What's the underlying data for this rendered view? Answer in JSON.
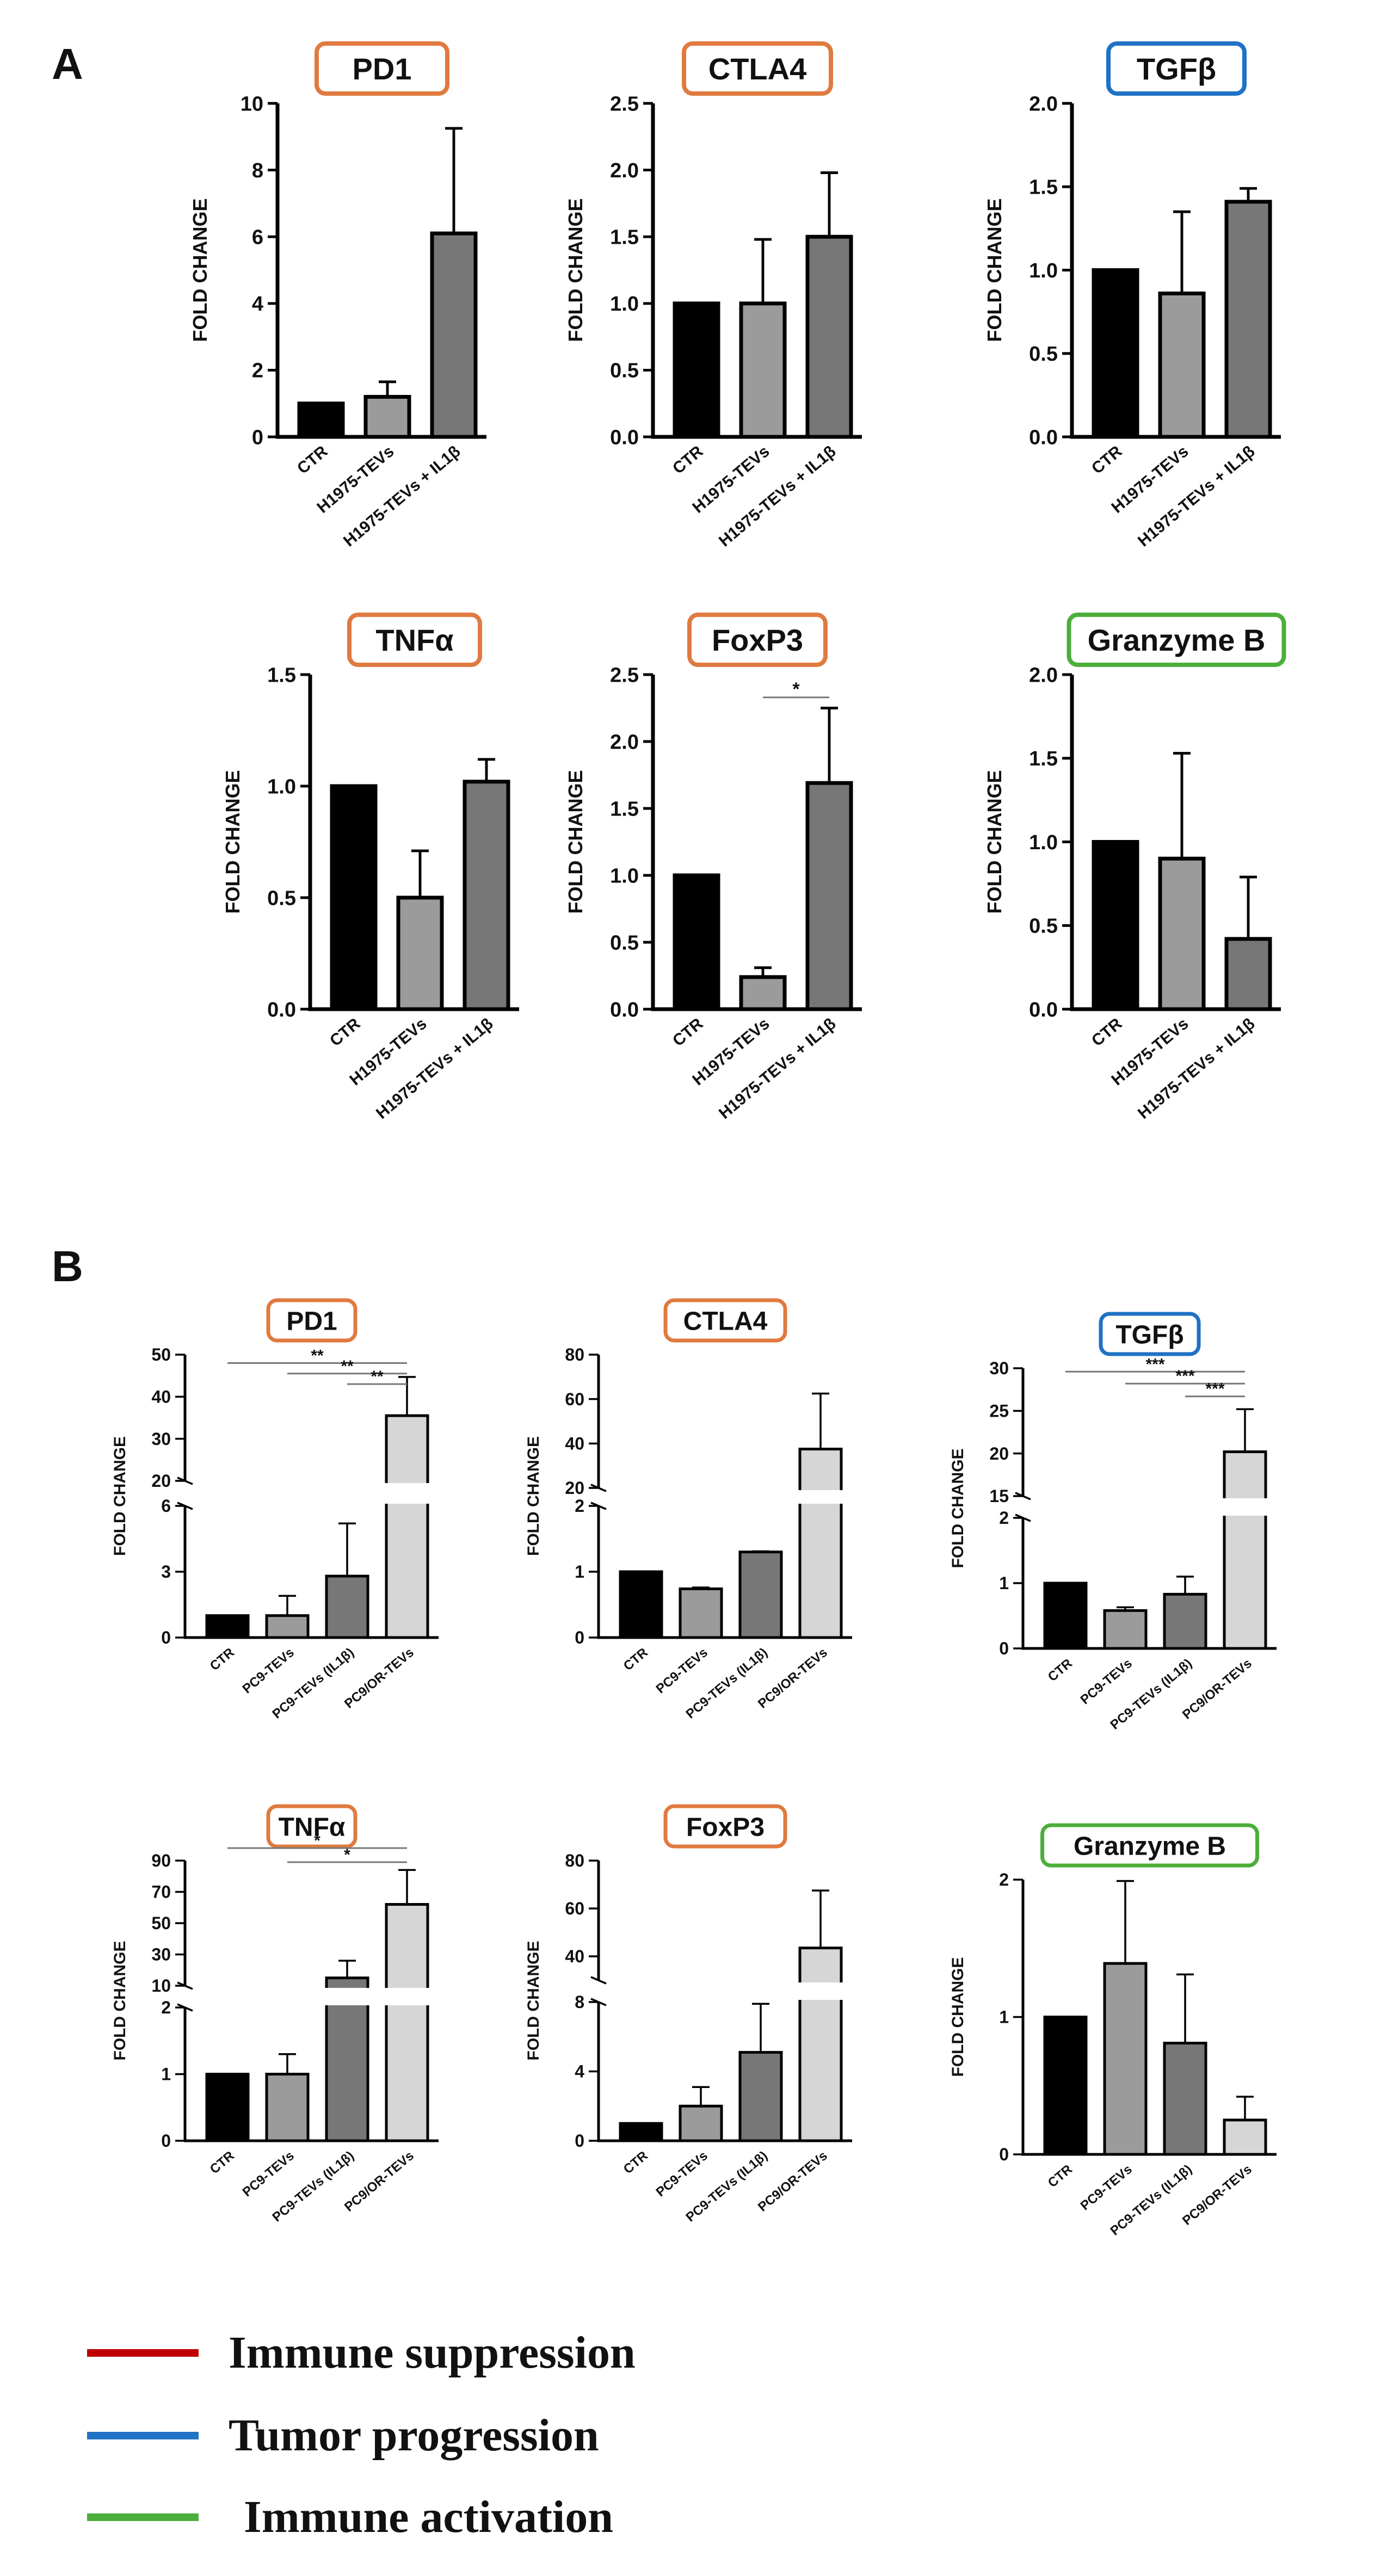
{
  "panel_labels": {
    "a": "A",
    "b": "B"
  },
  "colors": {
    "immune_suppression": "#e07a3f",
    "tumor_progression": "#1f72c4",
    "immune_activation": "#4cae3a",
    "legend_suppression_line": "#c00000",
    "legend_progression_line": "#1f72c4",
    "legend_activation_line": "#4cae3a",
    "bar_ctr": "#000000",
    "bar_2": "#9b9b9b",
    "bar_3": "#777777",
    "bar_4": "#d6d6d6"
  },
  "legend": [
    {
      "label": "Immune suppression",
      "color": "#c00000"
    },
    {
      "label": "Tumor progression",
      "color": "#1f72c4"
    },
    {
      "label": "Immune activation",
      "color": "#4cae3a"
    }
  ],
  "chart_data": [
    {
      "panel": "A",
      "type": "bar",
      "title": "PD1",
      "title_color": "#e07a3f",
      "ylabel": "FOLD CHANGE",
      "ylim": [
        0,
        10
      ],
      "yticks": [
        0,
        2,
        4,
        6,
        8,
        10
      ],
      "categories": [
        "CTR",
        "H1975-TEVs",
        "H1975-TEVs + IL1β"
      ],
      "values": [
        1.0,
        1.2,
        6.1
      ],
      "errors": [
        0,
        0.45,
        3.15
      ],
      "bar_colors": [
        "#000000",
        "#9b9b9b",
        "#777777"
      ],
      "significance": []
    },
    {
      "panel": "A",
      "type": "bar",
      "title": "CTLA4",
      "title_color": "#e07a3f",
      "ylabel": "FOLD CHANGE",
      "ylim": [
        0,
        2.5
      ],
      "yticks": [
        0.0,
        0.5,
        1.0,
        1.5,
        2.0,
        2.5
      ],
      "categories": [
        "CTR",
        "H1975-TEVs",
        "H1975-TEVs + IL1β"
      ],
      "values": [
        1.0,
        1.0,
        1.5
      ],
      "errors": [
        0,
        0.48,
        0.48
      ],
      "bar_colors": [
        "#000000",
        "#9b9b9b",
        "#777777"
      ],
      "significance": []
    },
    {
      "panel": "A",
      "type": "bar",
      "title": "TGFβ",
      "title_color": "#1f72c4",
      "ylabel": "FOLD CHANGE",
      "ylim": [
        0,
        2.0
      ],
      "yticks": [
        0.0,
        0.5,
        1.0,
        1.5,
        2.0
      ],
      "categories": [
        "CTR",
        "H1975-TEVs",
        "H1975-TEVs + IL1β"
      ],
      "values": [
        1.0,
        0.86,
        1.41
      ],
      "errors": [
        0,
        0.49,
        0.08
      ],
      "bar_colors": [
        "#000000",
        "#9b9b9b",
        "#777777"
      ],
      "significance": []
    },
    {
      "panel": "A",
      "type": "bar",
      "title": "TNFα",
      "title_color": "#e07a3f",
      "ylabel": "FOLD CHANGE",
      "ylim": [
        0,
        1.5
      ],
      "yticks": [
        0.0,
        0.5,
        1.0,
        1.5
      ],
      "categories": [
        "CTR",
        "H1975-TEVs",
        "H1975-TEVs + IL1β"
      ],
      "values": [
        1.0,
        0.5,
        1.02
      ],
      "errors": [
        0,
        0.21,
        0.1
      ],
      "bar_colors": [
        "#000000",
        "#9b9b9b",
        "#777777"
      ],
      "significance": []
    },
    {
      "panel": "A",
      "type": "bar",
      "title": "FoxP3",
      "title_color": "#e07a3f",
      "ylabel": "FOLD CHANGE",
      "ylim": [
        0,
        2.5
      ],
      "yticks": [
        0.0,
        0.5,
        1.0,
        1.5,
        2.0,
        2.5
      ],
      "categories": [
        "CTR",
        "H1975-TEVs",
        "H1975-TEVs + IL1β"
      ],
      "values": [
        1.0,
        0.24,
        1.69
      ],
      "errors": [
        0,
        0.07,
        0.56
      ],
      "bar_colors": [
        "#000000",
        "#9b9b9b",
        "#777777"
      ],
      "significance": [
        {
          "from": 1,
          "to": 2,
          "y": 2.33,
          "label": "*"
        }
      ]
    },
    {
      "panel": "A",
      "type": "bar",
      "title": "Granzyme B",
      "title_color": "#4cae3a",
      "ylabel": "FOLD CHANGE",
      "ylim": [
        0,
        2.0
      ],
      "yticks": [
        0.0,
        0.5,
        1.0,
        1.5,
        2.0
      ],
      "categories": [
        "CTR",
        "H1975-TEVs",
        "H1975-TEVs + IL1β"
      ],
      "values": [
        1.0,
        0.9,
        0.42
      ],
      "errors": [
        0,
        0.63,
        0.37
      ],
      "bar_colors": [
        "#000000",
        "#9b9b9b",
        "#777777"
      ],
      "significance": []
    },
    {
      "panel": "B",
      "type": "bar",
      "title": "PD1",
      "title_color": "#e07a3f",
      "ylabel": "FOLD CHANGE",
      "axis_break": {
        "lower": [
          0,
          6
        ],
        "upper": [
          20,
          50
        ],
        "lower_ticks": [
          0,
          3,
          6
        ],
        "upper_ticks": [
          20,
          30,
          40,
          50
        ]
      },
      "categories": [
        "CTR",
        "PC9-TEVs",
        "PC9-TEVs (IL1β)",
        "PC9/OR-TEVs"
      ],
      "values": [
        1.0,
        1.0,
        2.8,
        35.5
      ],
      "errors": [
        0,
        0.9,
        2.4,
        9.2
      ],
      "bar_colors": [
        "#000000",
        "#9b9b9b",
        "#777777",
        "#d6d6d6"
      ],
      "significance": [
        {
          "from": 0,
          "to": 3,
          "y": 48.0,
          "label": "**"
        },
        {
          "from": 1,
          "to": 3,
          "y": 45.5,
          "label": "**"
        },
        {
          "from": 2,
          "to": 3,
          "y": 43.0,
          "label": "**"
        }
      ]
    },
    {
      "panel": "B",
      "type": "bar",
      "title": "CTLA4",
      "title_color": "#e07a3f",
      "ylabel": "FOLD CHANGE",
      "axis_break": {
        "lower": [
          0,
          2
        ],
        "upper": [
          20,
          80
        ],
        "lower_ticks": [
          0,
          1,
          2
        ],
        "upper_ticks": [
          20,
          40,
          60,
          80
        ]
      },
      "categories": [
        "CTR",
        "PC9-TEVs",
        "PC9-TEVs (IL1β)",
        "PC9/OR-TEVs"
      ],
      "values": [
        1.0,
        0.74,
        1.3,
        37.5
      ],
      "errors": [
        0,
        0.02,
        0.01,
        25.0
      ],
      "bar_colors": [
        "#000000",
        "#9b9b9b",
        "#777777",
        "#d6d6d6"
      ],
      "significance": []
    },
    {
      "panel": "B",
      "type": "bar",
      "title": "TGFβ",
      "title_color": "#1f72c4",
      "ylabel": "FOLD CHANGE",
      "axis_break": {
        "lower": [
          0,
          2
        ],
        "upper": [
          15,
          30
        ],
        "lower_ticks": [
          0,
          1,
          2
        ],
        "upper_ticks": [
          15,
          20,
          25,
          30
        ]
      },
      "categories": [
        "CTR",
        "PC9-TEVs",
        "PC9-TEVs (IL1β)",
        "PC9/OR-TEVs"
      ],
      "values": [
        1.0,
        0.58,
        0.83,
        20.2
      ],
      "errors": [
        0,
        0.05,
        0.27,
        5.0
      ],
      "bar_colors": [
        "#000000",
        "#9b9b9b",
        "#777777",
        "#d6d6d6"
      ],
      "significance": [
        {
          "from": 0,
          "to": 3,
          "y": 29.6,
          "label": "***"
        },
        {
          "from": 1,
          "to": 3,
          "y": 28.2,
          "label": "***"
        },
        {
          "from": 2,
          "to": 3,
          "y": 26.7,
          "label": "***"
        }
      ]
    },
    {
      "panel": "B",
      "type": "bar",
      "title": "TNFα",
      "title_color": "#e07a3f",
      "ylabel": "FOLD CHANGE",
      "axis_break": {
        "lower": [
          0,
          2
        ],
        "upper": [
          10,
          90
        ],
        "lower_ticks": [
          0,
          1,
          2
        ],
        "upper_ticks": [
          10,
          30,
          50,
          70,
          90
        ]
      },
      "categories": [
        "CTR",
        "PC9-TEVs",
        "PC9-TEVs (IL1β)",
        "PC9/OR-TEVs"
      ],
      "values": [
        1.0,
        1.0,
        15.0,
        62.0
      ],
      "errors": [
        0,
        0.3,
        11.0,
        22.0
      ],
      "bar_colors": [
        "#000000",
        "#9b9b9b",
        "#777777",
        "#d6d6d6"
      ],
      "significance": [
        {
          "from": 0,
          "to": 3,
          "y": 98.0,
          "label": "*"
        },
        {
          "from": 1,
          "to": 3,
          "y": 89.0,
          "label": "*"
        }
      ]
    },
    {
      "panel": "B",
      "type": "bar",
      "title": "FoxP3",
      "title_color": "#e07a3f",
      "ylabel": "FOLD CHANGE",
      "axis_break": {
        "lower": [
          0,
          8
        ],
        "upper": [
          30,
          80
        ],
        "lower_ticks": [
          0,
          4,
          8
        ],
        "upper_ticks": [
          40,
          60,
          80
        ]
      },
      "categories": [
        "CTR",
        "PC9-TEVs",
        "PC9-TEVs (IL1β)",
        "PC9/OR-TEVs"
      ],
      "values": [
        1.0,
        2.0,
        5.1,
        43.5
      ],
      "errors": [
        0,
        1.1,
        2.8,
        24.0
      ],
      "bar_colors": [
        "#000000",
        "#9b9b9b",
        "#777777",
        "#d6d6d6"
      ],
      "significance": []
    },
    {
      "panel": "B",
      "type": "bar",
      "title": "Granzyme B",
      "title_color": "#4cae3a",
      "ylabel": "FOLD CHANGE",
      "ylim": [
        0,
        2
      ],
      "yticks": [
        0,
        1,
        2
      ],
      "categories": [
        "CTR",
        "PC9-TEVs",
        "PC9-TEVs (IL1β)",
        "PC9/OR-TEVs"
      ],
      "values": [
        1.0,
        1.39,
        0.81,
        0.25
      ],
      "errors": [
        0,
        0.6,
        0.5,
        0.17
      ],
      "bar_colors": [
        "#000000",
        "#9b9b9b",
        "#777777",
        "#d6d6d6"
      ],
      "significance": []
    }
  ]
}
